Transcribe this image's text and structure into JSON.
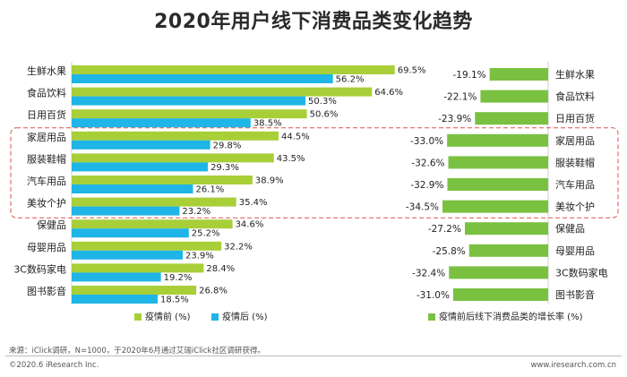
{
  "title": "2020年用户线下消费品类变化趋势",
  "colors": {
    "before": "#a8cf38",
    "after": "#1fb5e6",
    "growth": "#7ac142",
    "highlight": "#d9534f",
    "text": "#222222"
  },
  "chart_data": [
    {
      "type": "bar",
      "orientation": "horizontal",
      "categories": [
        "生鲜水果",
        "食品饮料",
        "日用百货",
        "家居用品",
        "服装鞋帽",
        "汽车用品",
        "美妆个护",
        "保健品",
        "母婴用品",
        "3C数码家电",
        "图书影音"
      ],
      "series": [
        {
          "name": "疫情前 (%)",
          "values": [
            69.5,
            64.6,
            50.6,
            44.5,
            43.5,
            38.9,
            35.4,
            34.6,
            32.2,
            28.4,
            26.8
          ]
        },
        {
          "name": "疫情后 (%)",
          "values": [
            56.2,
            50.3,
            38.5,
            29.8,
            29.3,
            26.1,
            23.2,
            25.2,
            23.9,
            19.2,
            18.5
          ]
        }
      ],
      "value_labels": {
        "before": [
          "69.5%",
          "64.6%",
          "50.6%",
          "44.5%",
          "43.5%",
          "38.9%",
          "35.4%",
          "34.6%",
          "32.2%",
          "28.4%",
          "26.8%"
        ],
        "after": [
          "56.2%",
          "50.3%",
          "38.5%",
          "29.8%",
          "29.3%",
          "26.1%",
          "23.2%",
          "25.2%",
          "23.9%",
          "19.2%",
          "18.5%"
        ]
      },
      "xlim": [
        0,
        75
      ],
      "legend": "bottom"
    },
    {
      "type": "bar",
      "orientation": "horizontal",
      "direction": "right-to-left",
      "categories": [
        "生鲜水果",
        "食品饮料",
        "日用百货",
        "家居用品",
        "服装鞋帽",
        "汽车用品",
        "美妆个护",
        "保健品",
        "母婴用品",
        "3C数码家电",
        "图书影音"
      ],
      "series": [
        {
          "name": "疫情前后线下消费品类的增长率 (%)",
          "values": [
            -19.1,
            -22.1,
            -23.9,
            -33.0,
            -32.6,
            -32.9,
            -34.5,
            -27.2,
            -25.8,
            -32.4,
            -31.0
          ]
        }
      ],
      "value_labels": [
        "-19.1%",
        "-22.1%",
        "-23.9%",
        "-33.0%",
        "-32.6%",
        "-32.9%",
        "-34.5%",
        "-27.2%",
        "-25.8%",
        "-32.4%",
        "-31.0%"
      ],
      "xlim": [
        -36,
        0
      ],
      "legend": "bottom"
    }
  ],
  "highlight_group": [
    "家居用品",
    "服装鞋帽",
    "汽车用品",
    "美妆个护"
  ],
  "source": "来源：iClick调研，N=1000，于2020年6月通过艾瑞iClick社区调研获得。",
  "copyright": "©2020.6 iResearch Inc.",
  "website": "www.iresearch.com.cn"
}
